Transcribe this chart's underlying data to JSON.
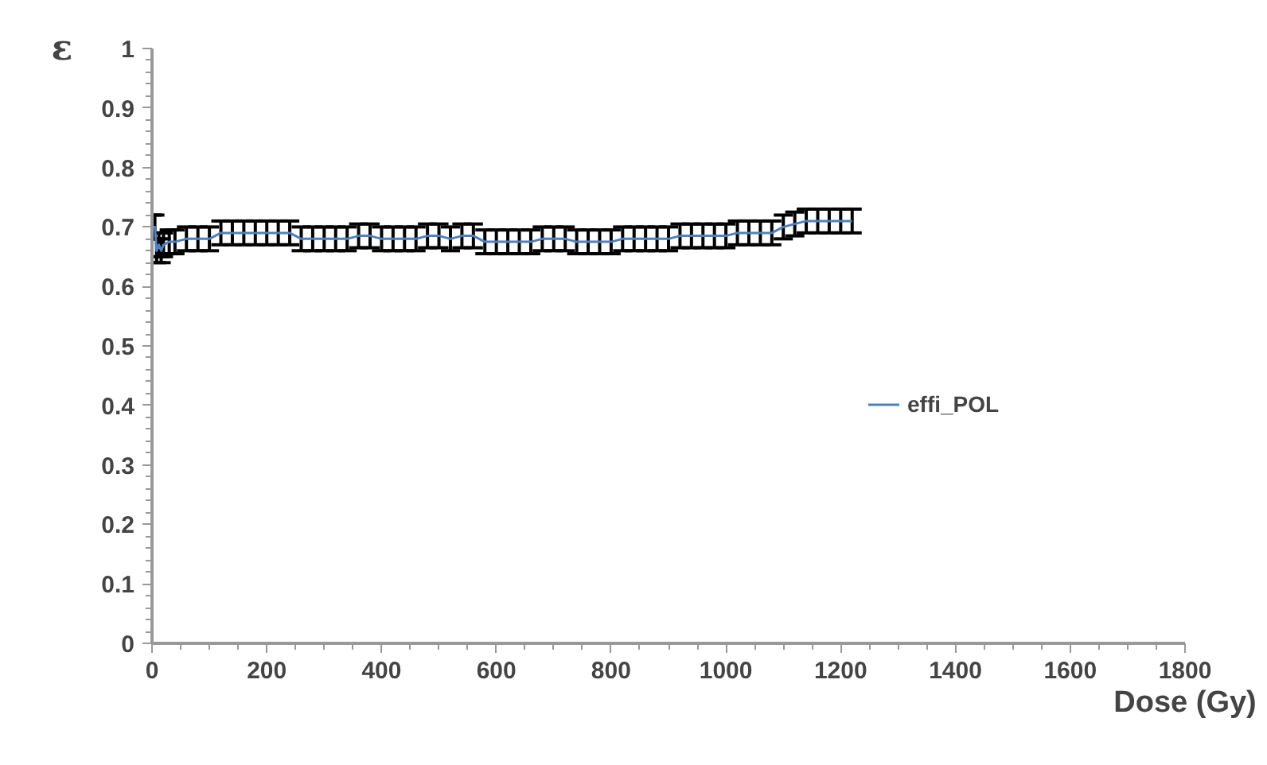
{
  "chart_data": {
    "type": "line",
    "xlabel": "Dose (Gy)",
    "ylabel": "ε",
    "x": [
      0,
      5,
      8,
      12,
      16,
      20,
      30,
      40,
      60,
      80,
      100,
      120,
      140,
      160,
      180,
      200,
      220,
      240,
      260,
      280,
      300,
      320,
      340,
      360,
      380,
      400,
      420,
      440,
      460,
      480,
      500,
      520,
      540,
      560,
      580,
      600,
      620,
      640,
      660,
      680,
      700,
      720,
      740,
      760,
      780,
      800,
      820,
      840,
      860,
      880,
      900,
      920,
      940,
      960,
      980,
      1000,
      1020,
      1040,
      1060,
      1080,
      1100,
      1120,
      1140,
      1160,
      1180,
      1200,
      1220
    ],
    "series": [
      {
        "name": "effi_POL",
        "color": "#4f81bd",
        "values": [
          0.7,
          0.7,
          0.66,
          0.67,
          0.66,
          0.67,
          0.675,
          0.675,
          0.68,
          0.68,
          0.68,
          0.69,
          0.69,
          0.69,
          0.69,
          0.69,
          0.69,
          0.69,
          0.68,
          0.68,
          0.68,
          0.68,
          0.68,
          0.685,
          0.685,
          0.68,
          0.68,
          0.68,
          0.68,
          0.685,
          0.685,
          0.68,
          0.685,
          0.685,
          0.675,
          0.675,
          0.675,
          0.675,
          0.675,
          0.68,
          0.68,
          0.68,
          0.675,
          0.675,
          0.675,
          0.675,
          0.68,
          0.68,
          0.68,
          0.68,
          0.68,
          0.685,
          0.685,
          0.685,
          0.685,
          0.685,
          0.69,
          0.69,
          0.69,
          0.69,
          0.7,
          0.705,
          0.71,
          0.71,
          0.71,
          0.71,
          0.71
        ],
        "errors": [
          0.02,
          0.02,
          0.02,
          0.02,
          0.02,
          0.02,
          0.02,
          0.02,
          0.02,
          0.02,
          0.02,
          0.02,
          0.02,
          0.02,
          0.02,
          0.02,
          0.02,
          0.02,
          0.02,
          0.02,
          0.02,
          0.02,
          0.02,
          0.02,
          0.02,
          0.02,
          0.02,
          0.02,
          0.02,
          0.02,
          0.02,
          0.02,
          0.02,
          0.02,
          0.02,
          0.02,
          0.02,
          0.02,
          0.02,
          0.02,
          0.02,
          0.02,
          0.02,
          0.02,
          0.02,
          0.02,
          0.02,
          0.02,
          0.02,
          0.02,
          0.02,
          0.02,
          0.02,
          0.02,
          0.02,
          0.02,
          0.02,
          0.02,
          0.02,
          0.02,
          0.02,
          0.02,
          0.02,
          0.02,
          0.02,
          0.02,
          0.02
        ]
      }
    ],
    "xlim": [
      0,
      1800
    ],
    "xticks": [
      0,
      200,
      400,
      600,
      800,
      1000,
      1200,
      1400,
      1600,
      1800
    ],
    "ylim": [
      0,
      1
    ],
    "yticks": [
      0,
      0.1,
      0.2,
      0.3,
      0.4,
      0.5,
      0.6,
      0.7,
      0.8,
      0.9,
      1
    ],
    "legend": "right",
    "grid": false
  }
}
